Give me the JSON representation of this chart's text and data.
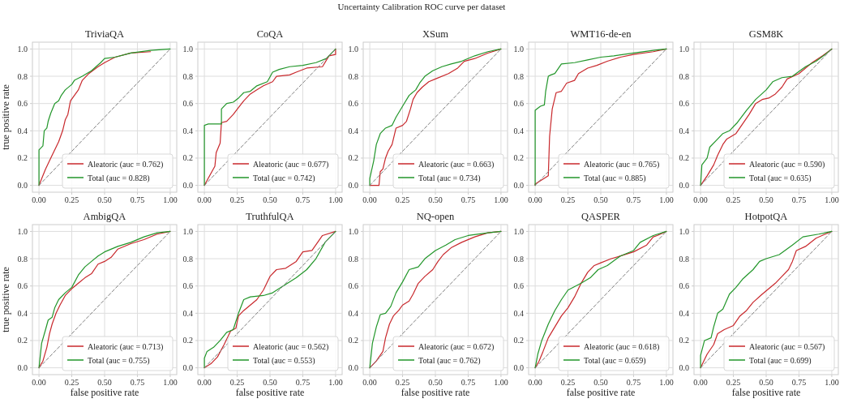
{
  "chart_data": [
    {
      "type": "line",
      "title": "TriviaQA",
      "ylabel": "true positive rate",
      "annotations": [
        "Uncertainty Calibration ROC curve per dataset"
      ],
      "xlim": [
        -0.05,
        1.05
      ],
      "ylim": [
        -0.05,
        1.05
      ],
      "xticks": [
        {
          "value": 0,
          "label": "0.00"
        },
        {
          "value": 0.25,
          "label": "0.25"
        },
        {
          "value": 0.5,
          "label": "0.50"
        },
        {
          "value": 0.75,
          "label": "0.75"
        },
        {
          "value": 1,
          "label": "1.00"
        }
      ],
      "yticks": [
        {
          "value": 0,
          "label": "0.0"
        },
        {
          "value": 0.2,
          "label": "0.2"
        },
        {
          "value": 0.4,
          "label": "0.4"
        },
        {
          "value": 0.6,
          "label": "0.6"
        },
        {
          "value": 0.8,
          "label": "0.8"
        },
        {
          "value": 1,
          "label": "1.0"
        }
      ],
      "grid": true,
      "legend": "bottom right",
      "series": [
        {
          "name": "Aleatoric (auc = 0.762)",
          "color": "#c8282c",
          "x": [
            0,
            0.05,
            0.1,
            0.15,
            0.18,
            0.2,
            0.22,
            0.24,
            0.27,
            0.3,
            0.33,
            0.38,
            0.45,
            0.5,
            0.58,
            0.7,
            0.85
          ],
          "values": [
            0,
            0.12,
            0.22,
            0.32,
            0.4,
            0.48,
            0.52,
            0.62,
            0.66,
            0.7,
            0.77,
            0.82,
            0.87,
            0.9,
            0.94,
            0.97,
            0.98
          ]
        },
        {
          "name": "Total (auc = 0.828)",
          "color": "#22962a",
          "x": [
            0,
            0,
            0.03,
            0.04,
            0.06,
            0.07,
            0.09,
            0.12,
            0.15,
            0.17,
            0.2,
            0.25,
            0.27,
            0.33,
            0.4,
            0.47,
            0.5,
            0.58,
            0.7,
            0.85,
            1
          ],
          "values": [
            0,
            0.26,
            0.29,
            0.4,
            0.42,
            0.47,
            0.53,
            0.6,
            0.62,
            0.66,
            0.7,
            0.74,
            0.77,
            0.8,
            0.84,
            0.9,
            0.93,
            0.94,
            0.97,
            0.99,
            1
          ]
        },
        {
          "color": "#808080",
          "line_style": "dashed",
          "x": [
            0,
            1
          ],
          "values": [
            0,
            1
          ]
        }
      ]
    },
    {
      "type": "line",
      "title": "CoQA",
      "xlim": [
        -0.05,
        1.05
      ],
      "ylim": [
        -0.05,
        1.05
      ],
      "xticks": [
        {
          "value": 0,
          "label": "0.00"
        },
        {
          "value": 0.25,
          "label": "0.25"
        },
        {
          "value": 0.5,
          "label": "0.50"
        },
        {
          "value": 0.75,
          "label": "0.75"
        },
        {
          "value": 1,
          "label": "1.00"
        }
      ],
      "yticks": [
        {
          "value": 0,
          "label": "0.0"
        },
        {
          "value": 0.2,
          "label": "0.2"
        },
        {
          "value": 0.4,
          "label": "0.4"
        },
        {
          "value": 0.6,
          "label": "0.6"
        },
        {
          "value": 0.8,
          "label": "0.8"
        },
        {
          "value": 1,
          "label": "1.0"
        }
      ],
      "grid": true,
      "legend": "bottom right",
      "series": [
        {
          "name": "Aleatoric (auc = 0.677)",
          "color": "#c8282c",
          "x": [
            0,
            0.08,
            0.09,
            0.12,
            0.13,
            0.17,
            0.22,
            0.26,
            0.3,
            0.35,
            0.4,
            0.45,
            0.52,
            0.55,
            0.65,
            0.7,
            0.78,
            0.9,
            0.95,
            1,
            1
          ],
          "values": [
            0,
            0.14,
            0.24,
            0.31,
            0.46,
            0.47,
            0.52,
            0.57,
            0.62,
            0.67,
            0.7,
            0.73,
            0.76,
            0.8,
            0.81,
            0.83,
            0.86,
            0.87,
            0.95,
            0.96,
            1
          ]
        },
        {
          "name": "Total (auc = 0.742)",
          "color": "#22962a",
          "x": [
            0,
            0,
            0.03,
            0.13,
            0.13,
            0.17,
            0.22,
            0.26,
            0.3,
            0.35,
            0.4,
            0.48,
            0.52,
            0.57,
            0.65,
            0.75,
            0.85,
            0.93,
            0.97,
            1
          ],
          "values": [
            0,
            0.44,
            0.45,
            0.45,
            0.56,
            0.6,
            0.61,
            0.64,
            0.68,
            0.69,
            0.73,
            0.76,
            0.83,
            0.85,
            0.87,
            0.88,
            0.9,
            0.93,
            0.97,
            1
          ]
        },
        {
          "color": "#808080",
          "line_style": "dashed",
          "x": [
            0,
            1
          ],
          "values": [
            0,
            1
          ]
        }
      ]
    },
    {
      "type": "line",
      "title": "XSum",
      "xlim": [
        -0.05,
        1.05
      ],
      "ylim": [
        -0.05,
        1.05
      ],
      "xticks": [
        {
          "value": 0,
          "label": "0.00"
        },
        {
          "value": 0.25,
          "label": "0.25"
        },
        {
          "value": 0.5,
          "label": "0.50"
        },
        {
          "value": 0.75,
          "label": "0.75"
        },
        {
          "value": 1,
          "label": "1.00"
        }
      ],
      "yticks": [
        {
          "value": 0,
          "label": "0.0"
        },
        {
          "value": 0.2,
          "label": "0.2"
        },
        {
          "value": 0.4,
          "label": "0.4"
        },
        {
          "value": 0.6,
          "label": "0.6"
        },
        {
          "value": 0.8,
          "label": "0.8"
        },
        {
          "value": 1,
          "label": "1.0"
        }
      ],
      "grid": true,
      "legend": "bottom right",
      "series": [
        {
          "name": "Aleatoric (auc = 0.663)",
          "color": "#c8282c",
          "x": [
            0,
            0.07,
            0.08,
            0.1,
            0.12,
            0.14,
            0.17,
            0.2,
            0.25,
            0.28,
            0.31,
            0.33,
            0.36,
            0.4,
            0.45,
            0.5,
            0.6,
            0.67,
            0.72,
            0.8,
            0.9,
            1
          ],
          "values": [
            0,
            0,
            0.1,
            0.12,
            0.2,
            0.25,
            0.3,
            0.42,
            0.44,
            0.47,
            0.56,
            0.63,
            0.68,
            0.72,
            0.76,
            0.78,
            0.82,
            0.86,
            0.91,
            0.93,
            0.97,
            1
          ]
        },
        {
          "name": "Total (auc = 0.734)",
          "color": "#22962a",
          "x": [
            0,
            0,
            0.03,
            0.05,
            0.08,
            0.12,
            0.17,
            0.2,
            0.25,
            0.3,
            0.35,
            0.38,
            0.42,
            0.48,
            0.55,
            0.62,
            0.7,
            0.8,
            0.9,
            1
          ],
          "values": [
            0,
            0.05,
            0.18,
            0.3,
            0.38,
            0.42,
            0.44,
            0.5,
            0.58,
            0.66,
            0.7,
            0.75,
            0.8,
            0.84,
            0.87,
            0.89,
            0.91,
            0.95,
            0.98,
            1
          ]
        },
        {
          "color": "#808080",
          "line_style": "dashed",
          "x": [
            0,
            1
          ],
          "values": [
            0,
            1
          ]
        }
      ]
    },
    {
      "type": "line",
      "title": "WMT16-de-en",
      "xlim": [
        -0.05,
        1.05
      ],
      "ylim": [
        -0.05,
        1.05
      ],
      "xticks": [
        {
          "value": 0,
          "label": "0.00"
        },
        {
          "value": 0.25,
          "label": "0.25"
        },
        {
          "value": 0.5,
          "label": "0.50"
        },
        {
          "value": 0.75,
          "label": "0.75"
        },
        {
          "value": 1,
          "label": "1.00"
        }
      ],
      "yticks": [
        {
          "value": 0,
          "label": "0.0"
        },
        {
          "value": 0.2,
          "label": "0.2"
        },
        {
          "value": 0.4,
          "label": "0.4"
        },
        {
          "value": 0.6,
          "label": "0.6"
        },
        {
          "value": 0.8,
          "label": "0.8"
        },
        {
          "value": 1,
          "label": "1.0"
        }
      ],
      "grid": true,
      "legend": "bottom right",
      "series": [
        {
          "name": "Aleatoric (auc = 0.765)",
          "color": "#c8282c",
          "x": [
            0,
            0,
            0.1,
            0.11,
            0.13,
            0.16,
            0.2,
            0.24,
            0.3,
            0.33,
            0.4,
            0.47,
            0.55,
            0.65,
            0.75,
            0.9,
            1
          ],
          "values": [
            0,
            0.01,
            0.07,
            0.36,
            0.56,
            0.68,
            0.69,
            0.75,
            0.77,
            0.82,
            0.86,
            0.88,
            0.91,
            0.94,
            0.96,
            0.98,
            1
          ]
        },
        {
          "name": "Total (auc = 0.885)",
          "color": "#22962a",
          "x": [
            0,
            0,
            0.04,
            0.07,
            0.08,
            0.1,
            0.12,
            0.15,
            0.2,
            0.3,
            0.4,
            0.5,
            0.6,
            0.75,
            0.9,
            1
          ],
          "values": [
            0,
            0.55,
            0.58,
            0.59,
            0.69,
            0.8,
            0.81,
            0.82,
            0.89,
            0.9,
            0.92,
            0.94,
            0.95,
            0.97,
            0.99,
            1
          ]
        },
        {
          "color": "#808080",
          "line_style": "dashed",
          "x": [
            0,
            1
          ],
          "values": [
            0,
            1
          ]
        }
      ]
    },
    {
      "type": "line",
      "title": "GSM8K",
      "xlim": [
        -0.05,
        1.05
      ],
      "ylim": [
        -0.05,
        1.05
      ],
      "xticks": [
        {
          "value": 0,
          "label": "0.00"
        },
        {
          "value": 0.25,
          "label": "0.25"
        },
        {
          "value": 0.5,
          "label": "0.50"
        },
        {
          "value": 0.75,
          "label": "0.75"
        },
        {
          "value": 1,
          "label": "1.00"
        }
      ],
      "yticks": [
        {
          "value": 0,
          "label": "0.0"
        },
        {
          "value": 0.2,
          "label": "0.2"
        },
        {
          "value": 0.4,
          "label": "0.4"
        },
        {
          "value": 0.6,
          "label": "0.6"
        },
        {
          "value": 0.8,
          "label": "0.8"
        },
        {
          "value": 1,
          "label": "1.0"
        }
      ],
      "grid": true,
      "legend": "bottom right",
      "series": [
        {
          "name": "Aleatoric (auc = 0.590)",
          "color": "#c8282c",
          "x": [
            0,
            0.05,
            0.1,
            0.13,
            0.17,
            0.2,
            0.27,
            0.32,
            0.37,
            0.42,
            0.47,
            0.52,
            0.57,
            0.62,
            0.66,
            0.75,
            0.85,
            0.93,
            1
          ],
          "values": [
            0,
            0.07,
            0.15,
            0.22,
            0.3,
            0.34,
            0.38,
            0.45,
            0.52,
            0.6,
            0.63,
            0.64,
            0.67,
            0.72,
            0.78,
            0.82,
            0.9,
            0.95,
            1
          ]
        },
        {
          "name": "Total (auc = 0.635)",
          "color": "#22962a",
          "x": [
            0,
            0.01,
            0.05,
            0.07,
            0.12,
            0.17,
            0.22,
            0.28,
            0.35,
            0.42,
            0.5,
            0.55,
            0.62,
            0.7,
            0.8,
            0.88,
            0.95,
            1
          ],
          "values": [
            0,
            0.15,
            0.2,
            0.28,
            0.33,
            0.38,
            0.4,
            0.46,
            0.55,
            0.63,
            0.7,
            0.76,
            0.79,
            0.8,
            0.87,
            0.91,
            0.96,
            1
          ]
        },
        {
          "color": "#808080",
          "line_style": "dashed",
          "x": [
            0,
            1
          ],
          "values": [
            0,
            1
          ]
        }
      ]
    },
    {
      "type": "line",
      "title": "AmbigQA",
      "xlabel": "false positive rate",
      "ylabel": "true positive rate",
      "xlim": [
        -0.05,
        1.05
      ],
      "ylim": [
        -0.05,
        1.05
      ],
      "xticks": [
        {
          "value": 0,
          "label": "0.00"
        },
        {
          "value": 0.25,
          "label": "0.25"
        },
        {
          "value": 0.5,
          "label": "0.50"
        },
        {
          "value": 0.75,
          "label": "0.75"
        },
        {
          "value": 1,
          "label": "1.00"
        }
      ],
      "yticks": [
        {
          "value": 0,
          "label": "0.0"
        },
        {
          "value": 0.2,
          "label": "0.2"
        },
        {
          "value": 0.4,
          "label": "0.4"
        },
        {
          "value": 0.6,
          "label": "0.6"
        },
        {
          "value": 0.8,
          "label": "0.8"
        },
        {
          "value": 1,
          "label": "1.0"
        }
      ],
      "grid": true,
      "legend": "bottom right",
      "series": [
        {
          "name": "Aleatoric (auc = 0.713)",
          "color": "#c8282c",
          "x": [
            0,
            0.03,
            0.06,
            0.08,
            0.1,
            0.13,
            0.16,
            0.2,
            0.25,
            0.3,
            0.35,
            0.4,
            0.45,
            0.5,
            0.55,
            0.6,
            0.7,
            0.8,
            0.9,
            1
          ],
          "values": [
            0,
            0.05,
            0.15,
            0.25,
            0.32,
            0.4,
            0.46,
            0.53,
            0.58,
            0.62,
            0.66,
            0.69,
            0.76,
            0.78,
            0.81,
            0.87,
            0.91,
            0.94,
            0.98,
            1
          ]
        },
        {
          "name": "Total (auc = 0.755)",
          "color": "#22962a",
          "x": [
            0,
            0.02,
            0.05,
            0.07,
            0.1,
            0.12,
            0.15,
            0.2,
            0.25,
            0.3,
            0.35,
            0.4,
            0.45,
            0.5,
            0.6,
            0.7,
            0.8,
            0.9,
            1
          ],
          "values": [
            0,
            0.18,
            0.28,
            0.35,
            0.37,
            0.44,
            0.5,
            0.55,
            0.59,
            0.68,
            0.74,
            0.78,
            0.82,
            0.85,
            0.89,
            0.92,
            0.96,
            0.99,
            1
          ]
        },
        {
          "color": "#808080",
          "line_style": "dashed",
          "x": [
            0,
            1
          ],
          "values": [
            0,
            1
          ]
        }
      ]
    },
    {
      "type": "line",
      "title": "TruthfulQA",
      "xlabel": "false positive rate",
      "xlim": [
        -0.05,
        1.05
      ],
      "ylim": [
        -0.05,
        1.05
      ],
      "xticks": [
        {
          "value": 0,
          "label": "0.00"
        },
        {
          "value": 0.25,
          "label": "0.25"
        },
        {
          "value": 0.5,
          "label": "0.50"
        },
        {
          "value": 0.75,
          "label": "0.75"
        },
        {
          "value": 1,
          "label": "1.00"
        }
      ],
      "yticks": [
        {
          "value": 0,
          "label": "0.0"
        },
        {
          "value": 0.2,
          "label": "0.2"
        },
        {
          "value": 0.4,
          "label": "0.4"
        },
        {
          "value": 0.6,
          "label": "0.6"
        },
        {
          "value": 0.8,
          "label": "0.8"
        },
        {
          "value": 1,
          "label": "1.0"
        }
      ],
      "grid": true,
      "legend": "bottom right",
      "series": [
        {
          "name": "Aleatoric (auc = 0.562)",
          "color": "#c8282c",
          "x": [
            0,
            0.05,
            0.1,
            0.15,
            0.2,
            0.24,
            0.26,
            0.3,
            0.35,
            0.4,
            0.45,
            0.5,
            0.55,
            0.62,
            0.7,
            0.75,
            0.82,
            0.9,
            1
          ],
          "values": [
            0,
            0.03,
            0.08,
            0.17,
            0.27,
            0.29,
            0.38,
            0.42,
            0.46,
            0.5,
            0.57,
            0.67,
            0.72,
            0.73,
            0.78,
            0.85,
            0.86,
            0.97,
            1
          ]
        },
        {
          "name": "Total (auc = 0.553)",
          "color": "#22962a",
          "x": [
            0,
            0,
            0.02,
            0.07,
            0.12,
            0.17,
            0.22,
            0.26,
            0.3,
            0.35,
            0.45,
            0.52,
            0.6,
            0.7,
            0.78,
            0.85,
            0.92,
            1
          ],
          "values": [
            0,
            0.07,
            0.12,
            0.15,
            0.2,
            0.26,
            0.28,
            0.4,
            0.5,
            0.52,
            0.53,
            0.55,
            0.6,
            0.66,
            0.72,
            0.8,
            0.92,
            1
          ]
        },
        {
          "color": "#808080",
          "line_style": "dashed",
          "x": [
            0,
            1
          ],
          "values": [
            0,
            1
          ]
        }
      ]
    },
    {
      "type": "line",
      "title": "NQ-open",
      "xlabel": "false positive rate",
      "xlim": [
        -0.05,
        1.05
      ],
      "ylim": [
        -0.05,
        1.05
      ],
      "xticks": [
        {
          "value": 0,
          "label": "0.00"
        },
        {
          "value": 0.25,
          "label": "0.25"
        },
        {
          "value": 0.5,
          "label": "0.50"
        },
        {
          "value": 0.75,
          "label": "0.75"
        },
        {
          "value": 1,
          "label": "1.00"
        }
      ],
      "yticks": [
        {
          "value": 0,
          "label": "0.0"
        },
        {
          "value": 0.2,
          "label": "0.2"
        },
        {
          "value": 0.4,
          "label": "0.4"
        },
        {
          "value": 0.6,
          "label": "0.6"
        },
        {
          "value": 0.8,
          "label": "0.8"
        },
        {
          "value": 1,
          "label": "1.0"
        }
      ],
      "grid": true,
      "legend": "bottom right",
      "series": [
        {
          "name": "Aleatoric (auc = 0.672)",
          "color": "#c8282c",
          "x": [
            0,
            0.05,
            0.1,
            0.12,
            0.15,
            0.18,
            0.22,
            0.25,
            0.3,
            0.33,
            0.37,
            0.42,
            0.48,
            0.52,
            0.56,
            0.62,
            0.7,
            0.8,
            0.9,
            1
          ],
          "values": [
            0,
            0.05,
            0.12,
            0.22,
            0.32,
            0.38,
            0.42,
            0.46,
            0.49,
            0.54,
            0.62,
            0.67,
            0.72,
            0.78,
            0.83,
            0.88,
            0.92,
            0.96,
            0.99,
            1
          ]
        },
        {
          "name": "Total (auc = 0.762)",
          "color": "#22962a",
          "x": [
            0,
            0.02,
            0.05,
            0.08,
            0.12,
            0.16,
            0.2,
            0.25,
            0.3,
            0.37,
            0.42,
            0.5,
            0.58,
            0.65,
            0.75,
            0.9,
            1
          ],
          "values": [
            0,
            0.18,
            0.3,
            0.39,
            0.4,
            0.45,
            0.55,
            0.63,
            0.72,
            0.74,
            0.8,
            0.86,
            0.9,
            0.94,
            0.97,
            0.99,
            1
          ]
        },
        {
          "color": "#808080",
          "line_style": "dashed",
          "x": [
            0,
            1
          ],
          "values": [
            0,
            1
          ]
        }
      ]
    },
    {
      "type": "line",
      "title": "QASPER",
      "xlabel": "false positive rate",
      "xlim": [
        -0.05,
        1.05
      ],
      "ylim": [
        -0.05,
        1.05
      ],
      "xticks": [
        {
          "value": 0,
          "label": "0.00"
        },
        {
          "value": 0.25,
          "label": "0.25"
        },
        {
          "value": 0.5,
          "label": "0.50"
        },
        {
          "value": 0.75,
          "label": "0.75"
        },
        {
          "value": 1,
          "label": "1.00"
        }
      ],
      "yticks": [
        {
          "value": 0,
          "label": "0.0"
        },
        {
          "value": 0.2,
          "label": "0.2"
        },
        {
          "value": 0.4,
          "label": "0.4"
        },
        {
          "value": 0.6,
          "label": "0.6"
        },
        {
          "value": 0.8,
          "label": "0.8"
        },
        {
          "value": 1,
          "label": "1.0"
        }
      ],
      "grid": true,
      "legend": "bottom right",
      "series": [
        {
          "name": "Aleatoric (auc = 0.618)",
          "color": "#c8282c",
          "x": [
            0,
            0.03,
            0.06,
            0.1,
            0.15,
            0.2,
            0.25,
            0.3,
            0.35,
            0.4,
            0.45,
            0.5,
            0.58,
            0.65,
            0.75,
            0.85,
            0.9,
            0.93,
            1
          ],
          "values": [
            0,
            0.05,
            0.12,
            0.22,
            0.3,
            0.38,
            0.44,
            0.52,
            0.62,
            0.7,
            0.75,
            0.77,
            0.8,
            0.82,
            0.85,
            0.9,
            0.96,
            0.97,
            1
          ]
        },
        {
          "name": "Total (auc = 0.659)",
          "color": "#22962a",
          "x": [
            0,
            0.02,
            0.05,
            0.1,
            0.15,
            0.2,
            0.25,
            0.35,
            0.42,
            0.48,
            0.55,
            0.65,
            0.75,
            0.8,
            0.9,
            1
          ],
          "values": [
            0,
            0.1,
            0.2,
            0.32,
            0.42,
            0.5,
            0.57,
            0.62,
            0.66,
            0.72,
            0.75,
            0.82,
            0.86,
            0.92,
            0.97,
            1
          ]
        },
        {
          "color": "#808080",
          "line_style": "dashed",
          "x": [
            0,
            1
          ],
          "values": [
            0,
            1
          ]
        }
      ]
    },
    {
      "type": "line",
      "title": "HotpotQA",
      "xlabel": "false positive rate",
      "xlim": [
        -0.05,
        1.05
      ],
      "ylim": [
        -0.05,
        1.05
      ],
      "xticks": [
        {
          "value": 0,
          "label": "0.00"
        },
        {
          "value": 0.25,
          "label": "0.25"
        },
        {
          "value": 0.5,
          "label": "0.50"
        },
        {
          "value": 0.75,
          "label": "0.75"
        },
        {
          "value": 1,
          "label": "1.00"
        }
      ],
      "yticks": [
        {
          "value": 0,
          "label": "0.0"
        },
        {
          "value": 0.2,
          "label": "0.2"
        },
        {
          "value": 0.4,
          "label": "0.4"
        },
        {
          "value": 0.6,
          "label": "0.6"
        },
        {
          "value": 0.8,
          "label": "0.8"
        },
        {
          "value": 1,
          "label": "1.0"
        }
      ],
      "grid": true,
      "legend": "bottom right",
      "series": [
        {
          "name": "Aleatoric (auc = 0.567)",
          "color": "#c8282c",
          "x": [
            0,
            0.05,
            0.1,
            0.13,
            0.18,
            0.25,
            0.3,
            0.35,
            0.4,
            0.47,
            0.52,
            0.57,
            0.62,
            0.67,
            0.7,
            0.73,
            0.8,
            0.88,
            0.95,
            1
          ],
          "values": [
            0,
            0.1,
            0.17,
            0.25,
            0.28,
            0.31,
            0.38,
            0.42,
            0.48,
            0.54,
            0.58,
            0.62,
            0.67,
            0.72,
            0.78,
            0.86,
            0.89,
            0.95,
            0.98,
            1
          ]
        },
        {
          "name": "Total (auc = 0.699)",
          "color": "#22962a",
          "x": [
            0,
            0,
            0.03,
            0.08,
            0.1,
            0.13,
            0.17,
            0.22,
            0.27,
            0.32,
            0.4,
            0.45,
            0.5,
            0.6,
            0.7,
            0.78,
            0.9,
            1
          ],
          "values": [
            0,
            0.09,
            0.2,
            0.22,
            0.3,
            0.4,
            0.43,
            0.54,
            0.59,
            0.65,
            0.72,
            0.78,
            0.8,
            0.83,
            0.9,
            0.96,
            0.98,
            1
          ]
        },
        {
          "color": "#808080",
          "line_style": "dashed",
          "x": [
            0,
            1
          ],
          "values": [
            0,
            1
          ]
        }
      ]
    }
  ]
}
